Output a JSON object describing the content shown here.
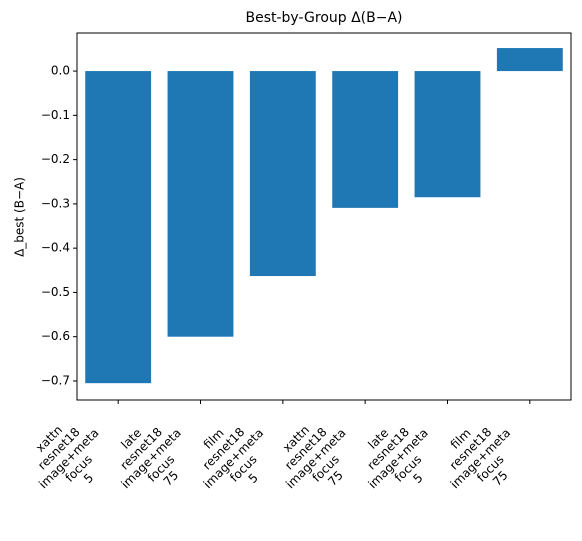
{
  "chart_data": {
    "type": "bar",
    "title": "Best-by-Group Δ(B−A)",
    "ylabel": "Δ_best (B−A)",
    "categories": [
      [
        "xattn",
        "resnet18",
        "image+meta",
        "focus",
        "5"
      ],
      [
        "late",
        "resnet18",
        "image+meta",
        "focus",
        "75"
      ],
      [
        "film",
        "resnet18",
        "image+meta",
        "focus",
        "5"
      ],
      [
        "xattn",
        "resnet18",
        "image+meta",
        "focus",
        "75"
      ],
      [
        "late",
        "resnet18",
        "image+meta",
        "focus",
        "5"
      ],
      [
        "film",
        "resnet18",
        "image+meta",
        "focus",
        "75"
      ]
    ],
    "values": [
      -0.705,
      -0.6,
      -0.463,
      -0.309,
      -0.285,
      0.052
    ],
    "color": "#1f77b4",
    "ylim": [
      -0.743,
      0.086
    ],
    "yticks": [
      {
        "value": 0,
        "label": "0.0"
      },
      {
        "value": -0.1,
        "label": "−0.1"
      },
      {
        "value": -0.2,
        "label": "−0.2"
      },
      {
        "value": -0.3,
        "label": "−0.3"
      },
      {
        "value": -0.4,
        "label": "−0.4"
      },
      {
        "value": -0.5,
        "label": "−0.5"
      },
      {
        "value": -0.6,
        "label": "−0.6"
      },
      {
        "value": -0.7,
        "label": "−0.7"
      }
    ],
    "grid": false
  }
}
